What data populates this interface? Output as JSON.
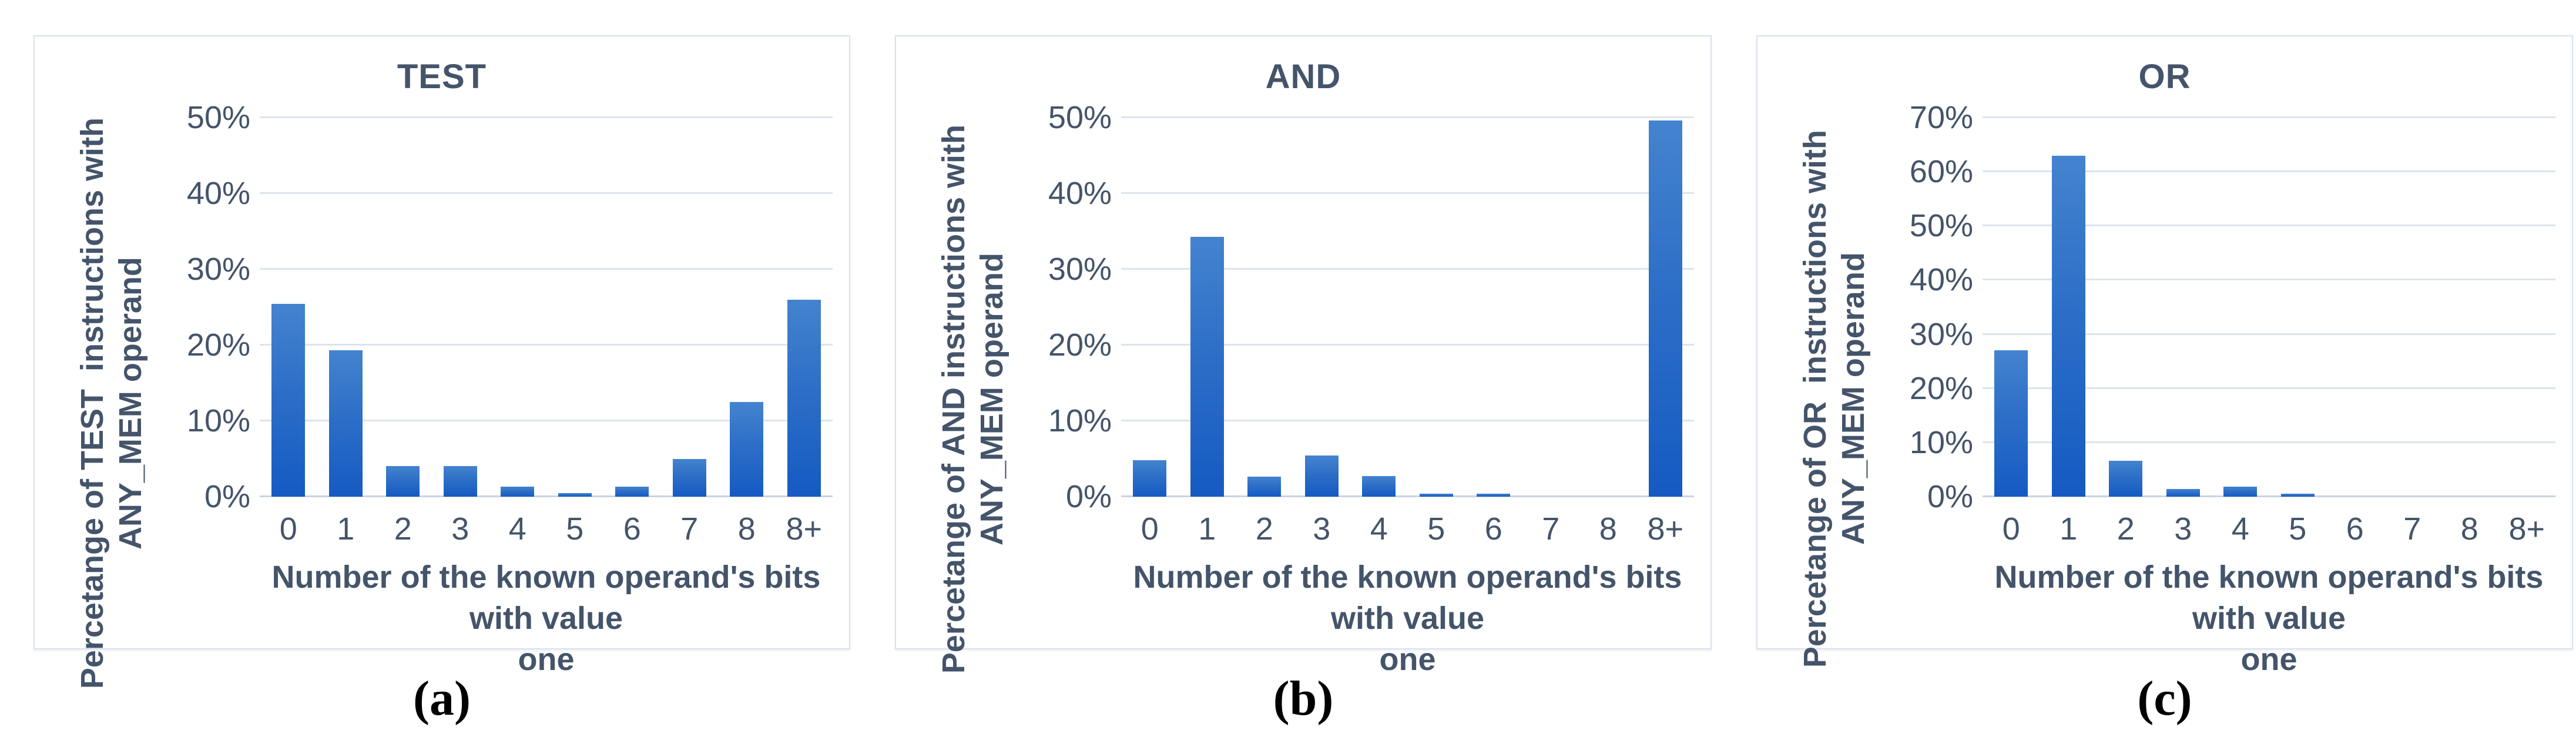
{
  "style": {
    "text_color": "#44546a",
    "grid_color": "#dce4ef",
    "axis_color": "#c9d3e3",
    "panel_border_color": "#d9e1ec",
    "bar_gradient_top": "#4483ce",
    "bar_gradient_bottom": "#155ac2",
    "caption_color": "#000000",
    "background_color": "#ffffff"
  },
  "chart_data": [
    {
      "type": "bar",
      "title": "TEST",
      "categories": [
        "0",
        "1",
        "2",
        "3",
        "4",
        "5",
        "6",
        "7",
        "8",
        "8+"
      ],
      "values": [
        25.4,
        19.3,
        4.0,
        4.0,
        1.3,
        0.5,
        1.3,
        5.0,
        12.5,
        26.0
      ],
      "ylabel": "Percetange of TEST  instructions with\nANY_MEM operand",
      "xlabel": "Number of the known operand's bits with value\none",
      "ylim": [
        0,
        50
      ],
      "ytick_labels": [
        "0%",
        "10%",
        "20%",
        "30%",
        "40%",
        "50%"
      ],
      "grid": "on",
      "legend": "none",
      "caption": "(a)"
    },
    {
      "type": "bar",
      "title": "AND",
      "categories": [
        "0",
        "1",
        "2",
        "3",
        "4",
        "5",
        "6",
        "7",
        "8",
        "8+"
      ],
      "values": [
        4.8,
        34.3,
        2.6,
        5.4,
        2.7,
        0.4,
        0.4,
        0,
        0,
        49.6
      ],
      "ylabel": "Percetange of AND instructions with\nANY_MEM operand",
      "xlabel": "Number of the known operand's bits with value\none",
      "ylim": [
        0,
        50
      ],
      "ytick_labels": [
        "0%",
        "10%",
        "20%",
        "30%",
        "40%",
        "50%"
      ],
      "grid": "on",
      "legend": "none",
      "caption": "(b)"
    },
    {
      "type": "bar",
      "title": "OR",
      "categories": [
        "0",
        "1",
        "2",
        "3",
        "4",
        "5",
        "6",
        "7",
        "8",
        "8+"
      ],
      "values": [
        27.0,
        63.0,
        6.6,
        1.4,
        1.8,
        0.5,
        0,
        0,
        0,
        0
      ],
      "ylabel": "Percetange of OR  instructions with\nANY_MEM operand",
      "xlabel": "Number of the known operand's bits with value\none",
      "ylim": [
        0,
        70
      ],
      "ytick_labels": [
        "0%",
        "10%",
        "20%",
        "30%",
        "40%",
        "50%",
        "60%",
        "70%"
      ],
      "grid": "on",
      "legend": "none",
      "caption": "(c)"
    }
  ]
}
